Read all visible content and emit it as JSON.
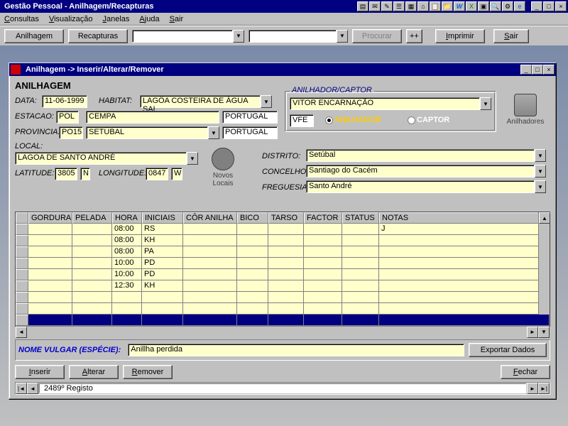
{
  "app": {
    "title": "Gestão Pessoal - Anilhagem/Recapturas"
  },
  "menu": {
    "consultas": "Consultas",
    "visualizacao": "Visualização",
    "janelas": "Janelas",
    "ajuda": "Ajuda",
    "sair": "Sair"
  },
  "toolbar": {
    "anilhagem": "Anilhagem",
    "recapturas": "Recapturas",
    "procurar": "Procurar",
    "plus": "++",
    "imprimir": "Imprimir",
    "sair": "Sair"
  },
  "child": {
    "title": "Anilhagem -> Inserir/Alterar/Remover",
    "heading": "ANILHAGEM"
  },
  "form": {
    "data_lbl": "DATA:",
    "data": "11-06-1999",
    "habitat_lbl": "HABITAT:",
    "habitat": "LAGÔA COSTEIRA DE ÁGUA SAL",
    "estacao_lbl": "ESTACAO:",
    "estacao": "POL",
    "estacao2": "CEMPA",
    "estacao_pais": "PORTUGAL",
    "provincia_lbl": "PROVINCIA:",
    "provincia": "PO15",
    "provincia2": "SETÚBAL",
    "provincia_pais": "PORTUGAL",
    "local_lbl": "LOCAL:",
    "local": "LAGOA DE SANTO ANDRÉ",
    "latitude_lbl": "LATITUDE:",
    "latitude": "3805",
    "lat_hem": "N",
    "longitude_lbl": "LONGITUDE:",
    "longitude": "0847",
    "lon_hem": "W",
    "novos_locais": "Novos Locais",
    "distrito_lbl": "DISTRITO:",
    "distrito": "Setúbal",
    "concelho_lbl": "CONCELHO:",
    "concelho": "Santiago do Cacém",
    "freguesia_lbl": "FREGUESIA:",
    "freguesia": "Santo André"
  },
  "captor": {
    "group": "ANILHADOR/CAPTOR",
    "name": "VITOR ENCARNAÇÃO",
    "code": "VFE",
    "opt_anilhador": "ANILHADOR",
    "opt_captor": "CAPTOR",
    "anilhadores": "Anilhadores"
  },
  "grid": {
    "cols": [
      "",
      "GORDURA",
      "PELADA",
      "HORA",
      "INICIAIS",
      "CÔR ANILHA",
      "BICO",
      "TARSO",
      "FACTOR",
      "STATUS",
      "NOTAS"
    ],
    "rows": [
      {
        "hora": "08:00",
        "iniciais": "RS",
        "notas": "J"
      },
      {
        "hora": "08:00",
        "iniciais": "KH",
        "notas": ""
      },
      {
        "hora": "08:00",
        "iniciais": "PA",
        "notas": ""
      },
      {
        "hora": "10:00",
        "iniciais": "PD",
        "notas": ""
      },
      {
        "hora": "10:00",
        "iniciais": "PD",
        "notas": ""
      },
      {
        "hora": "12:30",
        "iniciais": "KH",
        "notas": ""
      }
    ],
    "blank_rows": 3
  },
  "bottom": {
    "nome_lbl": "NOME VULGAR (ESPÉCIE):",
    "nome": "Anillha perdida",
    "exportar": "Exportar Dados"
  },
  "actions": {
    "inserir": "Inserir",
    "alterar": "Alterar",
    "remover": "Remover",
    "fechar": "Fechar"
  },
  "status": {
    "text": "2489º Registo"
  },
  "colors": {
    "titlebar": "#000080",
    "field_yellow": "#ffffcc"
  }
}
